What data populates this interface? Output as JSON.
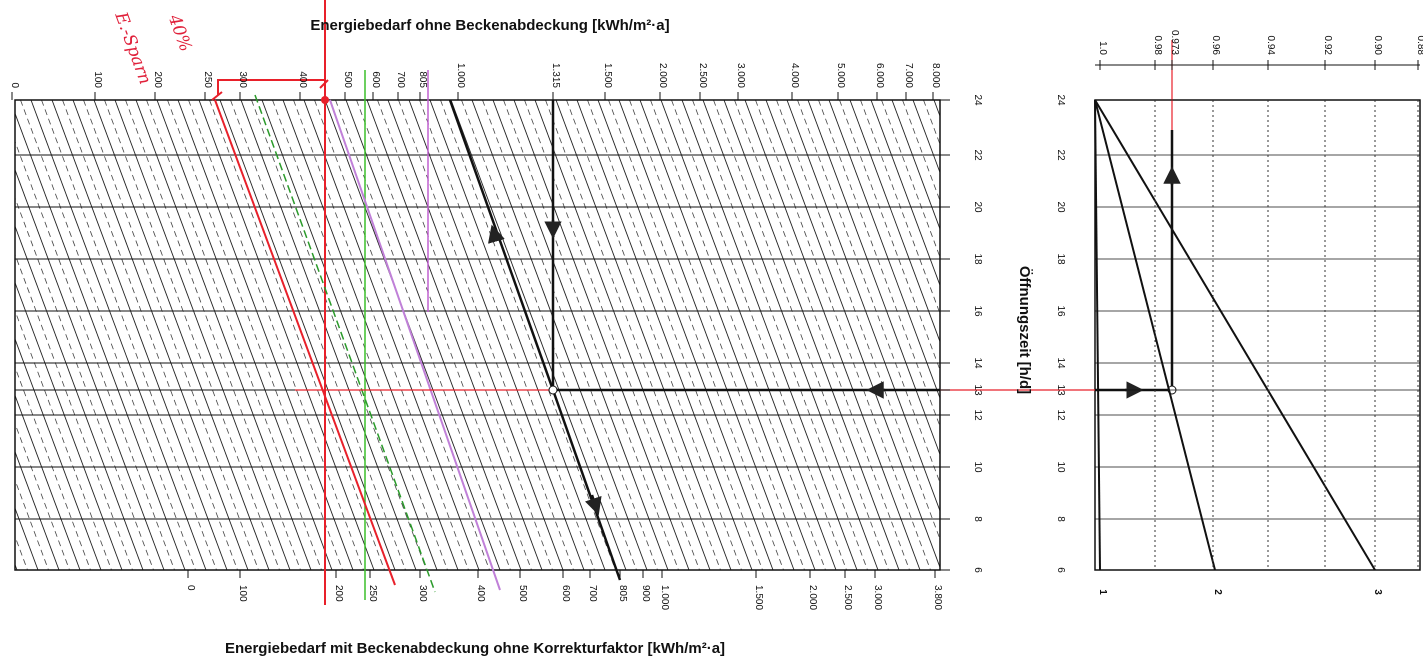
{
  "top_axis": {
    "title": "Energiebedarf ohne Beckenabdeckung [kWh/m²·a]",
    "ticks": [
      "0",
      "100",
      "200",
      "250",
      "300",
      "400",
      "500",
      "600",
      "700",
      "805",
      "1.000",
      "1.315",
      "1.500",
      "2.000",
      "2.500",
      "3.000",
      "4.000",
      "5.000",
      "6.000",
      "7.000",
      "8.000"
    ]
  },
  "bottom_axis": {
    "title": "Energiebedarf mit Beckenabdeckung ohne Korrekturfaktor [kWh/m²·a]",
    "ticks": [
      "0",
      "100",
      "200",
      "250",
      "300",
      "400",
      "500",
      "600",
      "700",
      "805",
      "900",
      "1.000",
      "1.500",
      "2.000",
      "2.500",
      "3.000",
      "3.800"
    ]
  },
  "hour_axis": {
    "title": "Öffnungszeit [h/d]",
    "ticks": [
      "24",
      "22",
      "20",
      "18",
      "16",
      "14",
      "13",
      "12",
      "10",
      "8",
      "6"
    ]
  },
  "factor_axis": {
    "ticks": [
      "1.0",
      "0.98",
      "0.973",
      "0.96",
      "0.94",
      "0.92",
      "0.90",
      "0.88"
    ]
  },
  "curves": {
    "labels": [
      "1",
      "2",
      "3"
    ]
  },
  "annotations": {
    "note_1": "E.-Sparn",
    "note_2": "40%"
  }
}
